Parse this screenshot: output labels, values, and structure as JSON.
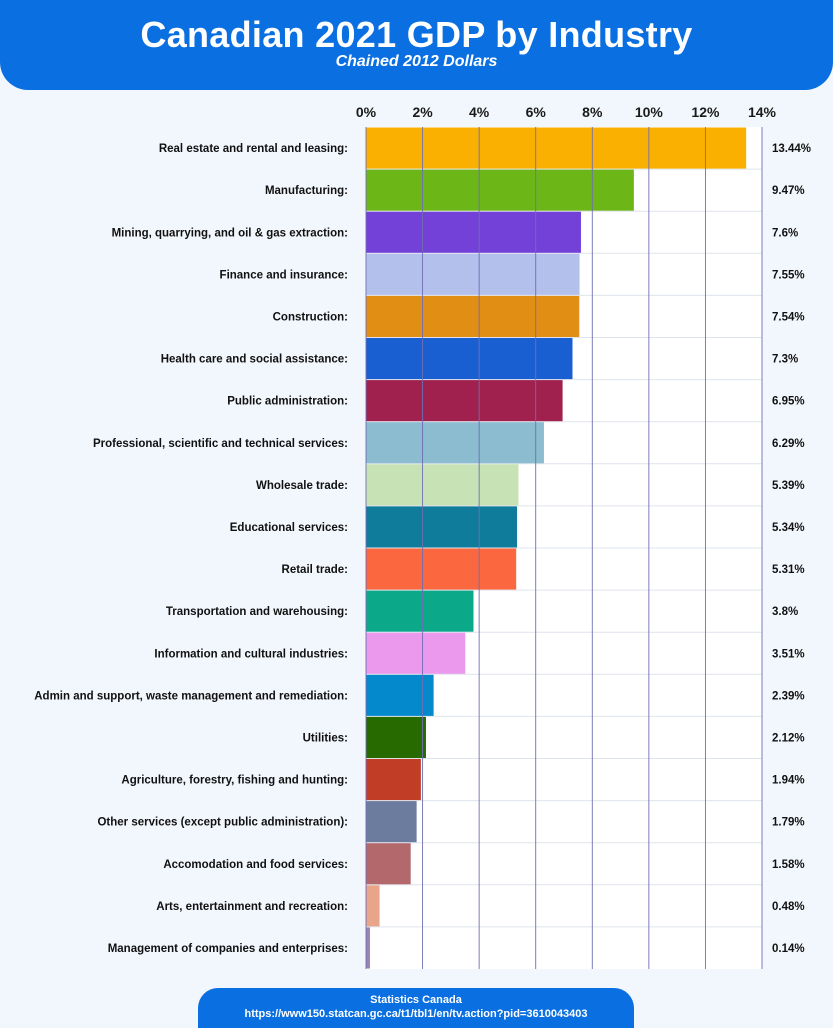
{
  "header": {
    "title": "Canadian 2021 GDP by Industry",
    "subtitle": "Chained 2012 Dollars"
  },
  "footer": {
    "source": "Statistics Canada",
    "url": "https://www150.statcan.gc.ca/t1/tbl1/en/tv.action?pid=3610043403"
  },
  "chart_data": {
    "type": "bar",
    "orientation": "horizontal",
    "title": "Canadian 2021 GDP by Industry",
    "subtitle": "Chained 2012 Dollars",
    "xlabel": "",
    "ylabel": "",
    "xlim": [
      0,
      14
    ],
    "x_ticks": [
      "0%",
      "2%",
      "4%",
      "6%",
      "8%",
      "10%",
      "12%",
      "14%"
    ],
    "grid": true,
    "categories": [
      "Real estate and rental and leasing:",
      "Manufacturing:",
      "Mining, quarrying, and oil & gas extraction:",
      "Finance and insurance:",
      "Construction:",
      "Health care and social assistance:",
      "Public administration:",
      "Professional, scientific and technical services:",
      "Wholesale trade:",
      "Educational services:",
      "Retail trade:",
      "Transportation and warehousing:",
      "Information and cultural industries:",
      "Admin and support, waste management and remediation:",
      "Utilities:",
      "Agriculture, forestry, fishing and hunting:",
      "Other services (except public administration):",
      "Accomodation and food services:",
      "Arts, entertainment and recreation:",
      "Management of companies and enterprises:"
    ],
    "values": [
      13.44,
      9.47,
      7.6,
      7.55,
      7.54,
      7.3,
      6.95,
      6.29,
      5.39,
      5.34,
      5.31,
      3.8,
      3.51,
      2.39,
      2.12,
      1.94,
      1.79,
      1.58,
      0.48,
      0.14
    ],
    "value_labels": [
      "13.44%",
      "9.47%",
      "7.6%",
      "7.55%",
      "7.54%",
      "7.3%",
      "6.95%",
      "6.29%",
      "5.39%",
      "5.34%",
      "5.31%",
      "3.8%",
      "3.51%",
      "2.39%",
      "2.12%",
      "1.94%",
      "1.79%",
      "1.58%",
      "0.48%",
      "0.14%"
    ],
    "colors": [
      "#f9b000",
      "#6db617",
      "#7340d8",
      "#b3c0ec",
      "#e08e14",
      "#1a5fd1",
      "#a0214e",
      "#8bbccf",
      "#c7e2b4",
      "#0f7c9b",
      "#fb673f",
      "#0ba88a",
      "#eb99ec",
      "#0489cc",
      "#276b00",
      "#c13d26",
      "#6b7c9e",
      "#b3686c",
      "#e9a589",
      "#9a84b4"
    ]
  }
}
